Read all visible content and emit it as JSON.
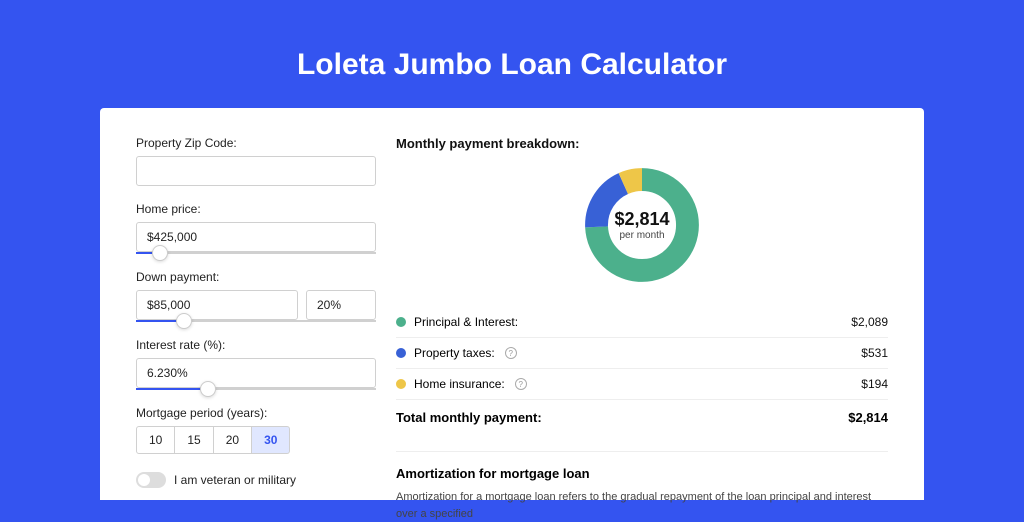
{
  "title": "Loleta Jumbo Loan Calculator",
  "colors": {
    "page_bg": "#3454f0",
    "card_bg": "#ffffff",
    "accent": "#3454f0",
    "series_principal": "#4cb08c",
    "series_taxes": "#3861d6",
    "series_insurance": "#eec648"
  },
  "form": {
    "zip": {
      "label": "Property Zip Code:",
      "value": ""
    },
    "price": {
      "label": "Home price:",
      "value": "$425,000",
      "slider_pct": 10
    },
    "down": {
      "label": "Down payment:",
      "amount": "$85,000",
      "percent": "20%",
      "slider_pct": 20
    },
    "rate": {
      "label": "Interest rate (%):",
      "value": "6.230%",
      "slider_pct": 30
    },
    "period": {
      "label": "Mortgage period (years):",
      "options": [
        "10",
        "15",
        "20",
        "30"
      ],
      "active_index": 3
    },
    "veteran": {
      "label": "I am veteran or military",
      "checked": false
    }
  },
  "breakdown": {
    "title": "Monthly payment breakdown:",
    "center_value": "$2,814",
    "center_sub": "per month",
    "items": [
      {
        "label": "Principal & Interest:",
        "value": "$2,089",
        "color": "#4cb08c",
        "proportion": 0.742,
        "info": false
      },
      {
        "label": "Property taxes:",
        "value": "$531",
        "color": "#3861d6",
        "proportion": 0.189,
        "info": true
      },
      {
        "label": "Home insurance:",
        "value": "$194",
        "color": "#eec648",
        "proportion": 0.069,
        "info": true
      }
    ],
    "total_label": "Total monthly payment:",
    "total_value": "$2,814"
  },
  "amortization": {
    "title": "Amortization for mortgage loan",
    "text": "Amortization for a mortgage loan refers to the gradual repayment of the loan principal and interest over a specified"
  }
}
